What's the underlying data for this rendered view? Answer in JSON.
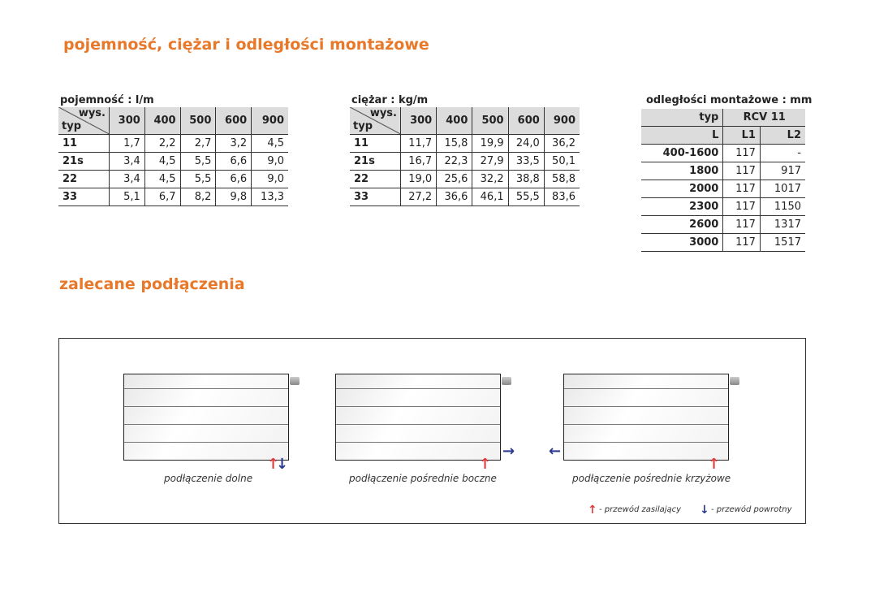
{
  "title1": "pojemność, ciężar i odległości montażowe",
  "title2": "zalecane podłączenia",
  "capacity": {
    "caption": "pojemność : l/m",
    "corner_top": "wys.",
    "corner_bottom": "typ",
    "heights": [
      "300",
      "400",
      "500",
      "600",
      "900"
    ],
    "rows": [
      {
        "typ": "11",
        "v": [
          "1,7",
          "2,2",
          "2,7",
          "3,2",
          "4,5"
        ]
      },
      {
        "typ": "21s",
        "v": [
          "3,4",
          "4,5",
          "5,5",
          "6,6",
          "9,0"
        ]
      },
      {
        "typ": "22",
        "v": [
          "3,4",
          "4,5",
          "5,5",
          "6,6",
          "9,0"
        ]
      },
      {
        "typ": "33",
        "v": [
          "5,1",
          "6,7",
          "8,2",
          "9,8",
          "13,3"
        ]
      }
    ]
  },
  "weight": {
    "caption": "ciężar : kg/m",
    "corner_top": "wys.",
    "corner_bottom": "typ",
    "heights": [
      "300",
      "400",
      "500",
      "600",
      "900"
    ],
    "rows": [
      {
        "typ": "11",
        "v": [
          "11,7",
          "15,8",
          "19,9",
          "24,0",
          "36,2"
        ]
      },
      {
        "typ": "21s",
        "v": [
          "16,7",
          "22,3",
          "27,9",
          "33,5",
          "50,1"
        ]
      },
      {
        "typ": "22",
        "v": [
          "19,0",
          "25,6",
          "32,2",
          "38,8",
          "58,8"
        ]
      },
      {
        "typ": "33",
        "v": [
          "27,2",
          "36,6",
          "46,1",
          "55,5",
          "83,6"
        ]
      }
    ]
  },
  "mounting": {
    "caption": "odległości montażowe : mm",
    "typ_label": "typ",
    "model": "RCV 11",
    "col_l": "L",
    "col_l1": "L1",
    "col_l2": "L2",
    "rows": [
      {
        "L": "400-1600",
        "L1": "117",
        "L2": "-"
      },
      {
        "L": "1800",
        "L1": "117",
        "L2": "917"
      },
      {
        "L": "2000",
        "L1": "117",
        "L2": "1017"
      },
      {
        "L": "2300",
        "L1": "117",
        "L2": "1150"
      },
      {
        "L": "2600",
        "L1": "117",
        "L2": "1317"
      },
      {
        "L": "3000",
        "L1": "117",
        "L2": "1517"
      }
    ]
  },
  "connections": [
    "podłączenie dolne",
    "podłączenie pośrednie boczne",
    "podłączenie pośrednie krzyżowe"
  ],
  "legend": {
    "supply": "- przewód zasilający",
    "return": "- przewód powrotny",
    "supply_color": "#e03a3a",
    "return_color": "#2b3990"
  },
  "accent": "#e8782a"
}
